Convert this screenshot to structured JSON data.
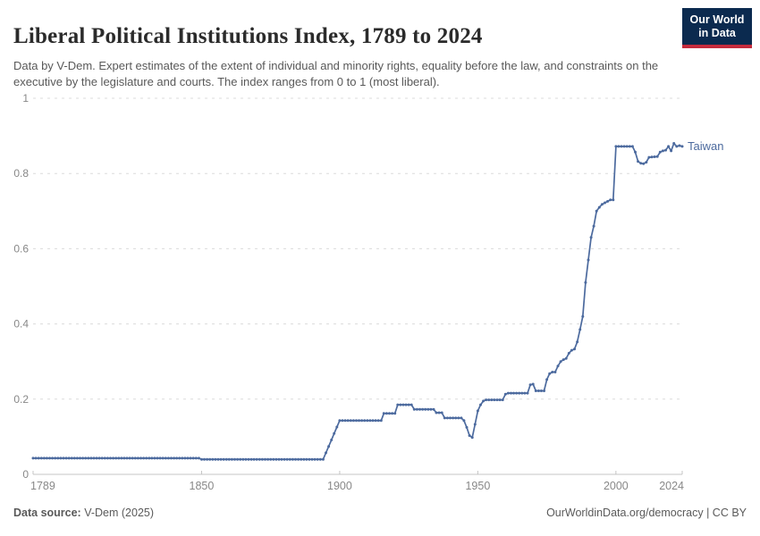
{
  "header": {
    "title": "Liberal Political Institutions Index, 1789 to 2024",
    "subtitle": "Data by V-Dem. Expert estimates of the extent of individual and minority rights, equality before the law, and constraints on the executive by the legislature and courts. The index ranges from 0 to 1 (most liberal).",
    "logo": {
      "line1": "Our World",
      "line2": "in Data"
    }
  },
  "colors": {
    "line": "#4C6A9E",
    "entity_label": "#4C6A9E",
    "grid": "#dcdcdc",
    "axis": "#c4c4c4",
    "tick_text": "#888888",
    "logo_bg": "#0b2a4f",
    "logo_red": "#c52b3d"
  },
  "chart_data": {
    "type": "line",
    "title": "Liberal Political Institutions Index, 1789 to 2024",
    "xlabel": "",
    "ylabel": "",
    "xlim": [
      1789,
      2024
    ],
    "ylim": [
      0,
      1
    ],
    "grid": "horizontal-dashed",
    "legend_position": "end-of-line-label",
    "x_ticks": [
      1789,
      1850,
      1900,
      1950,
      2000,
      2024
    ],
    "x_tick_labels": [
      "1789",
      "1850",
      "1900",
      "1950",
      "2000",
      "2024"
    ],
    "y_ticks": [
      0,
      0.2,
      0.4,
      0.6,
      0.8,
      1
    ],
    "y_tick_labels": [
      "0",
      "0.2",
      "0.4",
      "0.6",
      "0.8",
      "1"
    ],
    "series": [
      {
        "name": "Taiwan",
        "interpolation": "linear-yearly-markers",
        "breakpoints": [
          [
            1789,
            0.043
          ],
          [
            1849,
            0.043
          ],
          [
            1850,
            0.04
          ],
          [
            1894,
            0.04
          ],
          [
            1900,
            0.143
          ],
          [
            1915,
            0.143
          ],
          [
            1916,
            0.162
          ],
          [
            1920,
            0.162
          ],
          [
            1921,
            0.185
          ],
          [
            1926,
            0.185
          ],
          [
            1927,
            0.173
          ],
          [
            1934,
            0.173
          ],
          [
            1935,
            0.164
          ],
          [
            1937,
            0.164
          ],
          [
            1938,
            0.15
          ],
          [
            1944,
            0.15
          ],
          [
            1945,
            0.143
          ],
          [
            1946,
            0.125
          ],
          [
            1947,
            0.103
          ],
          [
            1948,
            0.098
          ],
          [
            1949,
            0.133
          ],
          [
            1950,
            0.169
          ],
          [
            1951,
            0.185
          ],
          [
            1952,
            0.195
          ],
          [
            1953,
            0.198
          ],
          [
            1959,
            0.198
          ],
          [
            1960,
            0.213
          ],
          [
            1961,
            0.216
          ],
          [
            1968,
            0.216
          ],
          [
            1969,
            0.238
          ],
          [
            1970,
            0.24
          ],
          [
            1971,
            0.222
          ],
          [
            1974,
            0.222
          ],
          [
            1975,
            0.252
          ],
          [
            1976,
            0.268
          ],
          [
            1977,
            0.272
          ],
          [
            1978,
            0.272
          ],
          [
            1979,
            0.288
          ],
          [
            1980,
            0.3
          ],
          [
            1981,
            0.305
          ],
          [
            1982,
            0.308
          ],
          [
            1983,
            0.322
          ],
          [
            1984,
            0.33
          ],
          [
            1985,
            0.333
          ],
          [
            1986,
            0.352
          ],
          [
            1987,
            0.385
          ],
          [
            1988,
            0.42
          ],
          [
            1989,
            0.51
          ],
          [
            1990,
            0.57
          ],
          [
            1991,
            0.63
          ],
          [
            1992,
            0.66
          ],
          [
            1993,
            0.7
          ],
          [
            1994,
            0.71
          ],
          [
            1995,
            0.718
          ],
          [
            1996,
            0.722
          ],
          [
            1997,
            0.726
          ],
          [
            1998,
            0.73
          ],
          [
            1999,
            0.73
          ],
          [
            2000,
            0.872
          ],
          [
            2006,
            0.872
          ],
          [
            2007,
            0.857
          ],
          [
            2008,
            0.832
          ],
          [
            2009,
            0.827
          ],
          [
            2010,
            0.826
          ],
          [
            2011,
            0.83
          ],
          [
            2012,
            0.843
          ],
          [
            2015,
            0.845
          ],
          [
            2016,
            0.857
          ],
          [
            2017,
            0.86
          ],
          [
            2018,
            0.862
          ],
          [
            2019,
            0.872
          ],
          [
            2020,
            0.86
          ],
          [
            2021,
            0.88
          ],
          [
            2022,
            0.872
          ],
          [
            2023,
            0.874
          ],
          [
            2024,
            0.872
          ]
        ]
      }
    ]
  },
  "footer": {
    "source_label": "Data source:",
    "source_value": " V-Dem (2025)",
    "right_text": "OurWorldinData.org/democracy | CC BY"
  }
}
